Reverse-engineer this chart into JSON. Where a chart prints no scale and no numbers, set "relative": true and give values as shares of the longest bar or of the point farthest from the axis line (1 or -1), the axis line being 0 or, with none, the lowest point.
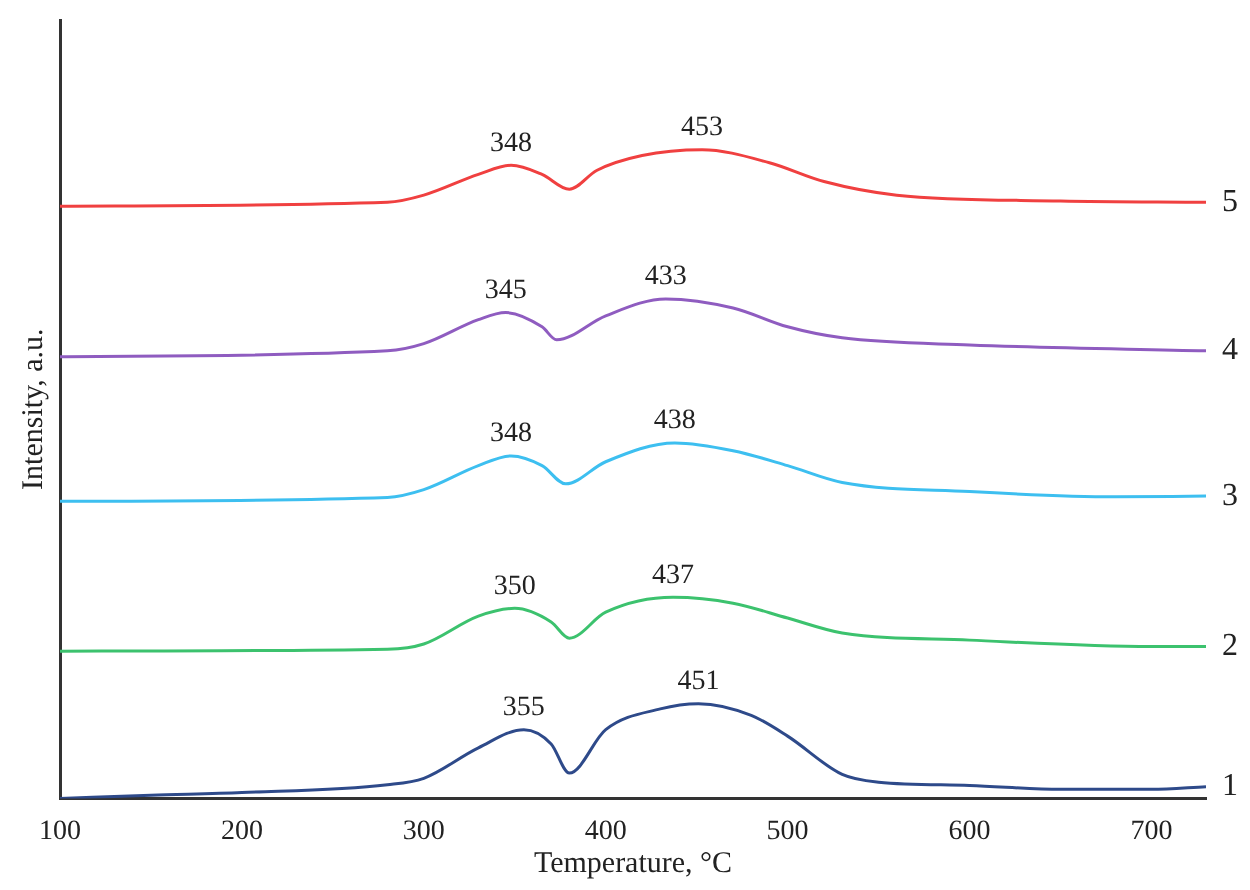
{
  "chart_data": {
    "type": "line",
    "xlabel": "Temperature, °C",
    "ylabel": "Intensity, a.u.",
    "relative": true,
    "grid": false,
    "legend": false,
    "marker": "none",
    "line_style": "solid",
    "xlim": [
      100,
      730
    ],
    "xticks": [
      100,
      200,
      300,
      400,
      500,
      600,
      700
    ],
    "series": [
      {
        "name": "1",
        "color": "#2e4a8a",
        "x": [
          100,
          150,
          200,
          280,
          300,
          330,
          355,
          370,
          380,
          400,
          430,
          451,
          480,
          500,
          530,
          550,
          600,
          650,
          700,
          730
        ],
        "values": [
          0,
          0.005,
          0.009,
          0.021,
          0.031,
          0.078,
          0.106,
          0.084,
          0.039,
          0.106,
          0.138,
          0.146,
          0.128,
          0.096,
          0.037,
          0.025,
          0.02,
          0.014,
          0.014,
          0.018
        ]
      },
      {
        "name": "2",
        "color": "#3cc26e",
        "x": [
          100,
          280,
          300,
          330,
          350,
          370,
          380,
          400,
          437,
          470,
          500,
          530,
          600,
          700,
          730
        ],
        "values": [
          0.227,
          0.23,
          0.238,
          0.281,
          0.293,
          0.272,
          0.247,
          0.287,
          0.31,
          0.301,
          0.278,
          0.255,
          0.244,
          0.234,
          0.234
        ]
      },
      {
        "name": "3",
        "color": "#3dbff0",
        "x": [
          100,
          280,
          300,
          330,
          348,
          365,
          378,
          400,
          438,
          470,
          500,
          530,
          600,
          680,
          730
        ],
        "values": [
          0.458,
          0.464,
          0.476,
          0.513,
          0.528,
          0.513,
          0.485,
          0.519,
          0.548,
          0.536,
          0.513,
          0.487,
          0.473,
          0.465,
          0.466
        ]
      },
      {
        "name": "4",
        "color": "#8f5cc0",
        "x": [
          100,
          280,
          300,
          330,
          345,
          365,
          373,
          400,
          433,
          470,
          500,
          530,
          600,
          730
        ],
        "values": [
          0.681,
          0.69,
          0.701,
          0.738,
          0.749,
          0.727,
          0.707,
          0.744,
          0.77,
          0.756,
          0.727,
          0.71,
          0.699,
          0.69
        ]
      },
      {
        "name": "5",
        "color": "#f04040",
        "x": [
          100,
          280,
          300,
          330,
          348,
          365,
          380,
          395,
          420,
          453,
          490,
          520,
          560,
          650,
          730
        ],
        "values": [
          0.913,
          0.919,
          0.93,
          0.962,
          0.976,
          0.962,
          0.939,
          0.968,
          0.991,
          1,
          0.98,
          0.951,
          0.93,
          0.921,
          0.919
        ]
      }
    ],
    "annotations": [
      {
        "text": "355",
        "x": 355,
        "y": 0.106
      },
      {
        "text": "451",
        "x": 451,
        "y": 0.146
      },
      {
        "text": "350",
        "x": 350,
        "y": 0.293
      },
      {
        "text": "437",
        "x": 437,
        "y": 0.31
      },
      {
        "text": "348",
        "x": 348,
        "y": 0.528
      },
      {
        "text": "438",
        "x": 438,
        "y": 0.548
      },
      {
        "text": "345",
        "x": 345,
        "y": 0.749
      },
      {
        "text": "433",
        "x": 433,
        "y": 0.77
      },
      {
        "text": "348",
        "x": 348,
        "y": 0.976
      },
      {
        "text": "453",
        "x": 453,
        "y": 1
      }
    ]
  }
}
